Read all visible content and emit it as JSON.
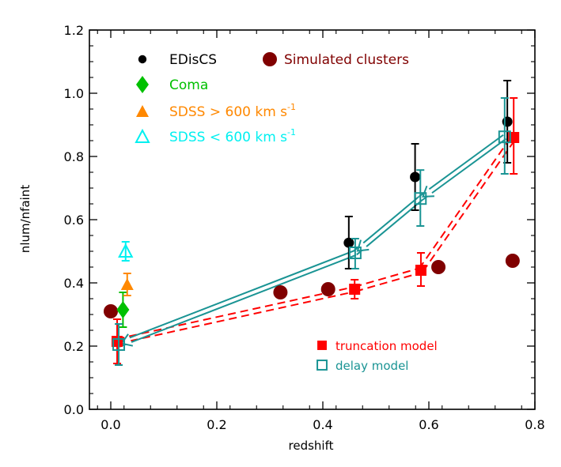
{
  "chart_data": {
    "type": "scatter",
    "title": "",
    "xlabel": "redshift",
    "ylabel": "nlum/nfaint",
    "xlim": [
      -0.04,
      0.8
    ],
    "ylim": [
      0.0,
      1.2
    ],
    "xticks": [
      "0.0",
      "0.2",
      "0.4",
      "0.6",
      "0.8"
    ],
    "xtick_values": [
      0.0,
      0.2,
      0.4,
      0.6,
      0.8
    ],
    "yticks": [
      "0.0",
      "0.2",
      "0.4",
      "0.6",
      "0.8",
      "1.0",
      "1.2"
    ],
    "ytick_values": [
      0.0,
      0.2,
      0.4,
      0.6,
      0.8,
      1.0,
      1.2
    ],
    "grid": false,
    "legend_position": "upper-left",
    "series": [
      {
        "name": "EDisCS",
        "marker": "filled-circle",
        "color": "#000000",
        "points": [
          {
            "x": 0.449,
            "y": 0.527,
            "err_lo": 0.445,
            "err_hi": 0.61
          },
          {
            "x": 0.574,
            "y": 0.735,
            "err_lo": 0.63,
            "err_hi": 0.84
          },
          {
            "x": 0.748,
            "y": 0.91,
            "err_lo": 0.78,
            "err_hi": 1.04
          }
        ]
      },
      {
        "name": "Simulated clusters",
        "marker": "large-filled-circle",
        "color": "#800000",
        "points": [
          {
            "x": 0.0,
            "y": 0.31
          },
          {
            "x": 0.32,
            "y": 0.37
          },
          {
            "x": 0.41,
            "y": 0.38
          },
          {
            "x": 0.618,
            "y": 0.45
          },
          {
            "x": 0.758,
            "y": 0.47
          }
        ]
      },
      {
        "name": "Coma",
        "marker": "filled-diamond",
        "color": "#00c000",
        "points": [
          {
            "x": 0.023,
            "y": 0.315,
            "err_lo": 0.26,
            "err_hi": 0.37
          }
        ]
      },
      {
        "name": "SDSS > 600 km s^-1",
        "marker": "filled-triangle",
        "color": "#ff8800",
        "points": [
          {
            "x": 0.031,
            "y": 0.395,
            "err_lo": 0.36,
            "err_hi": 0.43
          }
        ]
      },
      {
        "name": "SDSS < 600 km s^-1",
        "marker": "open-triangle",
        "color": "#00f0f0",
        "points": [
          {
            "x": 0.028,
            "y": 0.5,
            "err_lo": 0.47,
            "err_hi": 0.53
          }
        ]
      },
      {
        "name": "truncation model",
        "marker": "filled-square",
        "color": "#ff0000",
        "line": "double-dashed",
        "points": [
          {
            "x": 0.012,
            "y": 0.215,
            "err_lo": 0.145,
            "err_hi": 0.285
          },
          {
            "x": 0.46,
            "y": 0.38,
            "err_lo": 0.35,
            "err_hi": 0.41
          },
          {
            "x": 0.585,
            "y": 0.44,
            "err_lo": 0.39,
            "err_hi": 0.495
          },
          {
            "x": 0.76,
            "y": 0.86,
            "err_lo": 0.745,
            "err_hi": 0.985
          }
        ]
      },
      {
        "name": "delay model",
        "marker": "open-square",
        "color": "#1a9494",
        "line": "double-solid-arrow",
        "points": [
          {
            "x": 0.015,
            "y": 0.205,
            "err_lo": 0.14,
            "err_hi": 0.27
          },
          {
            "x": 0.461,
            "y": 0.495,
            "err_lo": 0.445,
            "err_hi": 0.54
          },
          {
            "x": 0.584,
            "y": 0.667,
            "err_lo": 0.58,
            "err_hi": 0.757
          },
          {
            "x": 0.743,
            "y": 0.862,
            "err_lo": 0.745,
            "err_hi": 0.985
          }
        ]
      }
    ],
    "legend": {
      "top_left": [
        {
          "label": "EDisCS",
          "color": "#000000",
          "marker": "filled-circle"
        },
        {
          "label": "Coma",
          "color": "#00c000",
          "marker": "filled-diamond"
        },
        {
          "label": "SDSS > 600 km s",
          "sup": "-1",
          "color": "#ff8800",
          "marker": "filled-triangle"
        },
        {
          "label": "SDSS < 600 km s",
          "sup": "-1",
          "color": "#00f0f0",
          "marker": "open-triangle"
        }
      ],
      "top_right": [
        {
          "label": "Simulated clusters",
          "color": "#800000",
          "marker": "large-filled-circle"
        }
      ],
      "bottom_right": [
        {
          "label": "truncation model",
          "color": "#ff0000",
          "marker": "filled-square"
        },
        {
          "label": "delay model",
          "color": "#1a9494",
          "marker": "open-square"
        }
      ]
    }
  }
}
